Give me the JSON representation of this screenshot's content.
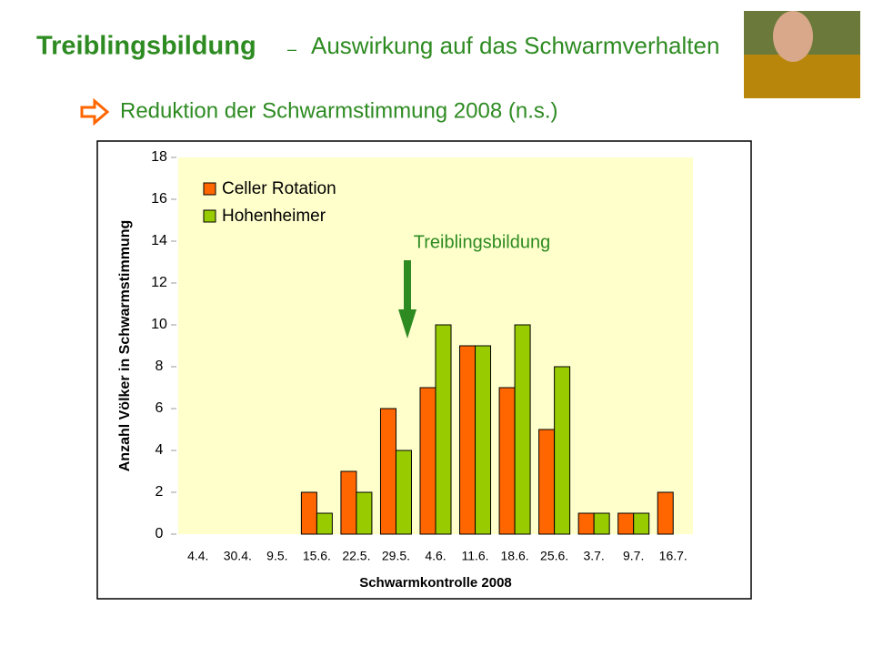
{
  "slide": {
    "title": "Treiblingsbildung",
    "separator": "–",
    "title_suffix": "Auswirkung auf das Schwarmverhalten",
    "subtitle": "Reduktion der Schwarmstimmung 2008 (n.s.)"
  },
  "chart_data": {
    "type": "bar",
    "categories": [
      "4.4.",
      "30.4.",
      "9.5.",
      "15.6.",
      "22.5.",
      "29.5.",
      "4.6.",
      "11.6.",
      "18.6.",
      "25.6.",
      "3.7.",
      "9.7.",
      "16.7."
    ],
    "series": [
      {
        "name": "Celler Rotation",
        "color": "#ff6600",
        "values": [
          0,
          0,
          0,
          2,
          3,
          6,
          7,
          9,
          7,
          5,
          1,
          1,
          2
        ]
      },
      {
        "name": "Hohenheimer",
        "color": "#99cc00",
        "values": [
          0,
          0,
          0,
          1,
          2,
          4,
          10,
          9,
          10,
          8,
          1,
          1,
          0
        ]
      }
    ],
    "ylim": [
      0,
      18
    ],
    "yticks": [
      0,
      2,
      4,
      6,
      8,
      10,
      12,
      14,
      16,
      18
    ],
    "y_label": "Anzahl Völker in Schwarmstimmung",
    "x_label": "Schwarmkontrolle 2008",
    "annotation": "Treiblingsbildung",
    "legend": "upper left",
    "plot_background": "#ffffcc",
    "grid": false
  }
}
